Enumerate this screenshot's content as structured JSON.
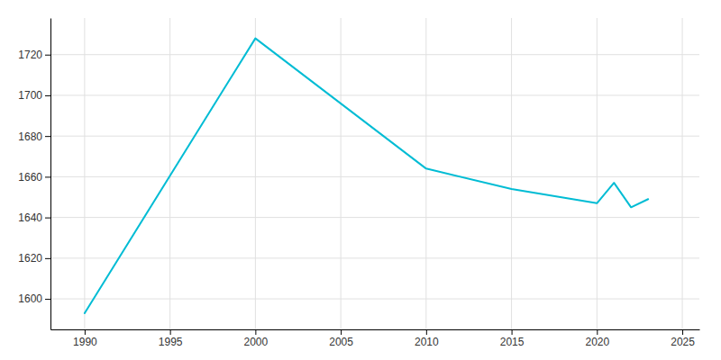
{
  "chart_data": {
    "type": "line",
    "x": [
      1990,
      2000,
      2010,
      2015,
      2020,
      2021,
      2022,
      2023
    ],
    "values": [
      1593,
      1728,
      1664,
      1654,
      1647,
      1657,
      1645,
      1649
    ],
    "color": "#00BCD4",
    "xlim": [
      1988,
      2026
    ],
    "ylim": [
      1585,
      1738
    ],
    "xticks": [
      1990,
      1995,
      2000,
      2005,
      2010,
      2015,
      2020,
      2025
    ],
    "yticks": [
      1600,
      1620,
      1640,
      1660,
      1680,
      1700,
      1720
    ],
    "grid": true
  }
}
